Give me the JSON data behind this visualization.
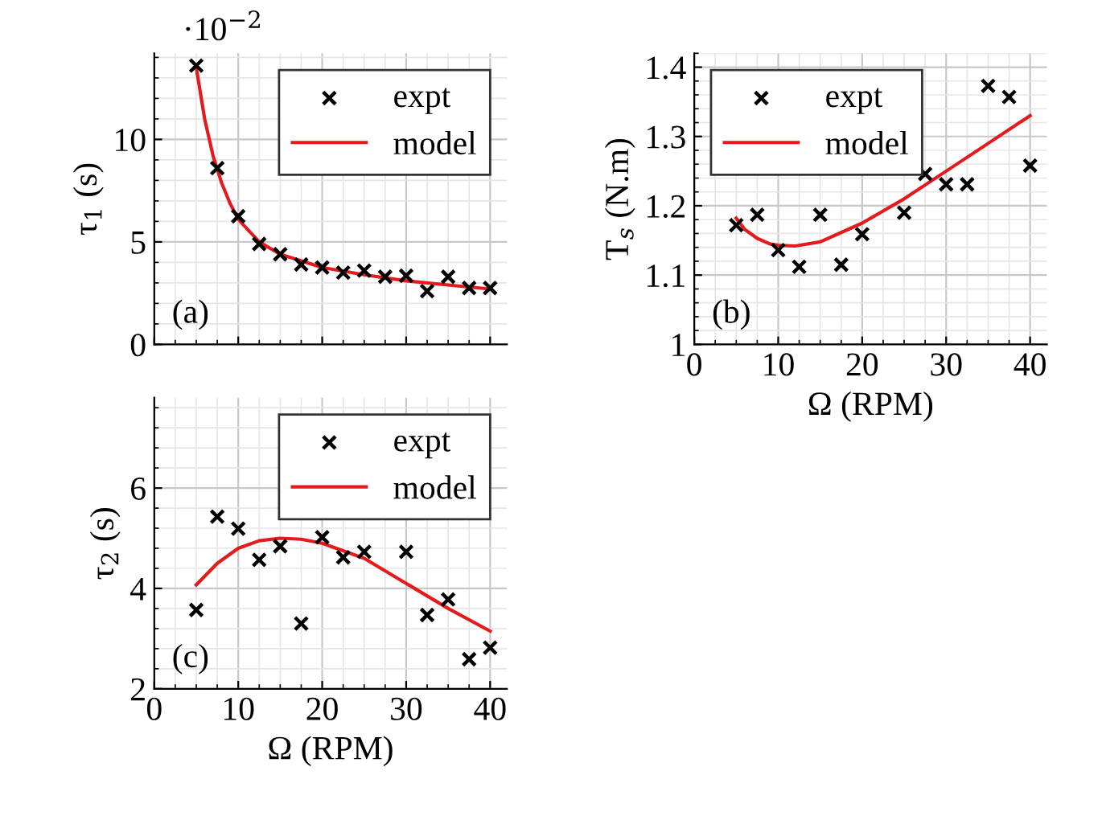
{
  "chart_data": [
    {
      "type": "scatter",
      "ylabel": "τ$_{1}$ (s)",
      "annotations": [
        "(a)",
        "·10$^{−2}$"
      ],
      "xlim": [
        0,
        42
      ],
      "xticks": [
        0,
        10,
        20,
        30,
        40
      ],
      "ylim": [
        0,
        14.2
      ],
      "yticks": [
        0,
        5,
        10
      ],
      "tick_labels": "y",
      "grid": true,
      "legend": "top right",
      "series": [
        {
          "name": "expt",
          "marker": "cross",
          "color": "#000000",
          "x": [
            5,
            7.5,
            10,
            12.5,
            15,
            17.5,
            20,
            22.5,
            25,
            27.5,
            30,
            32.5,
            35,
            37.5,
            40
          ],
          "values": [
            13.6,
            8.6,
            6.25,
            4.9,
            4.4,
            3.9,
            3.75,
            3.5,
            3.6,
            3.3,
            3.35,
            2.6,
            3.3,
            2.75,
            2.75
          ]
        },
        {
          "name": "model",
          "type": "line",
          "marker": "none",
          "color": "#e41a1c",
          "x": [
            5,
            6,
            7,
            8,
            9,
            10,
            12.5,
            15,
            20,
            25,
            30,
            35,
            40
          ],
          "values": [
            13.5,
            11.0,
            9.2,
            7.9,
            6.9,
            6.1,
            5.0,
            4.4,
            3.75,
            3.4,
            3.1,
            2.9,
            2.7
          ]
        }
      ]
    },
    {
      "type": "scatter",
      "ylabel": "T$_{s}$ (N.m)",
      "xlabel": "Ω (RPM)",
      "annotations": [
        "(b)"
      ],
      "xlim": [
        0,
        42
      ],
      "xticks": [
        0,
        10,
        20,
        30,
        40
      ],
      "ylim": [
        1,
        1.42
      ],
      "yticks": [
        1,
        1.1,
        1.2,
        1.3,
        1.4
      ],
      "grid": true,
      "legend": "top left",
      "series": [
        {
          "name": "expt",
          "marker": "cross",
          "color": "#000000",
          "x": [
            5,
            7.5,
            10,
            12.5,
            15,
            17.5,
            20,
            25,
            27.5,
            30,
            32.5,
            35,
            37.5,
            40
          ],
          "values": [
            1.172,
            1.187,
            1.136,
            1.112,
            1.187,
            1.115,
            1.159,
            1.19,
            1.246,
            1.231,
            1.231,
            1.373,
            1.357,
            1.258
          ]
        },
        {
          "name": "model",
          "type": "line",
          "marker": "none",
          "color": "#e41a1c",
          "x": [
            5,
            6,
            7.5,
            9,
            10,
            12,
            15,
            20,
            25,
            30,
            35,
            40
          ],
          "values": [
            1.182,
            1.166,
            1.153,
            1.145,
            1.143,
            1.142,
            1.148,
            1.175,
            1.21,
            1.25,
            1.29,
            1.33
          ]
        }
      ]
    },
    {
      "type": "scatter",
      "ylabel": "τ$_{2}$ (s)",
      "xlabel": "Ω (RPM)",
      "annotations": [
        "(c)"
      ],
      "xlim": [
        0,
        42
      ],
      "xticks": [
        0,
        10,
        20,
        30,
        40
      ],
      "ylim": [
        2,
        7.8
      ],
      "yticks": [
        2,
        4,
        6
      ],
      "grid": true,
      "legend": "top right",
      "series": [
        {
          "name": "expt",
          "marker": "cross",
          "color": "#000000",
          "x": [
            5,
            7.5,
            10,
            12.5,
            15,
            17.5,
            20,
            22.5,
            25,
            30,
            32.5,
            35,
            37.5,
            40
          ],
          "values": [
            3.57,
            5.43,
            5.19,
            4.57,
            4.84,
            3.3,
            5.02,
            4.62,
            4.73,
            4.73,
            3.47,
            3.78,
            2.59,
            2.82
          ]
        },
        {
          "name": "model",
          "type": "line",
          "marker": "none",
          "color": "#e41a1c",
          "x": [
            5,
            7.5,
            10,
            12.5,
            15,
            17.5,
            20,
            25,
            30,
            35,
            40
          ],
          "values": [
            4.07,
            4.5,
            4.8,
            4.95,
            5.0,
            4.98,
            4.9,
            4.6,
            4.1,
            3.6,
            3.15
          ]
        }
      ]
    }
  ]
}
